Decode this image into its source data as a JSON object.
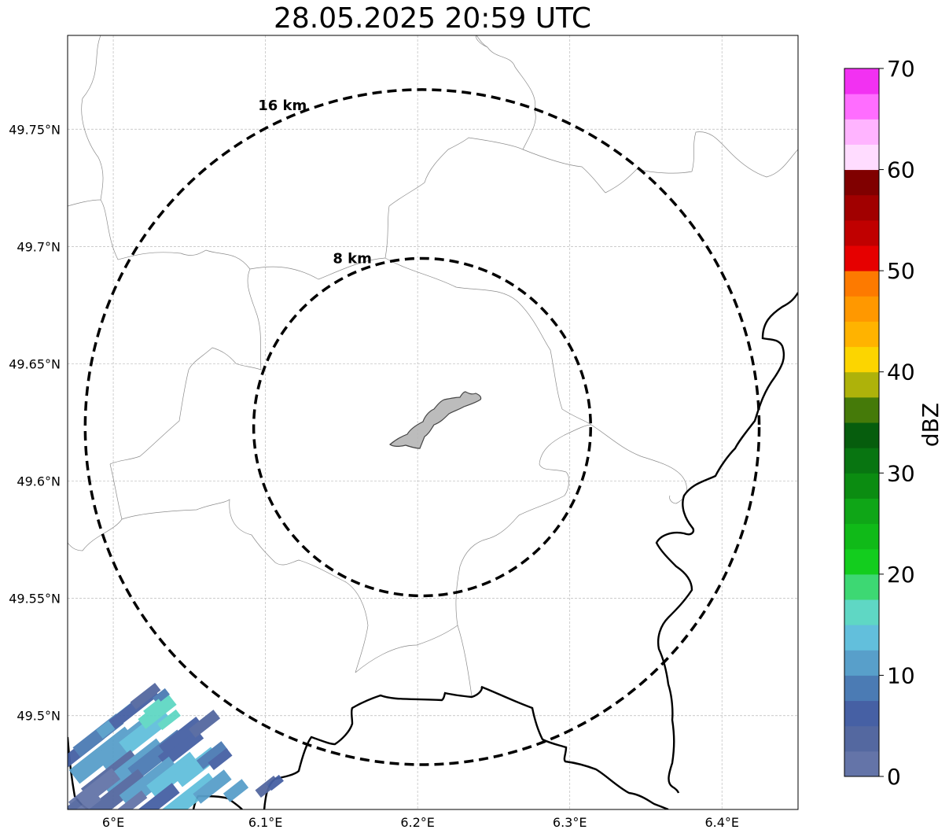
{
  "title": "28.05.2025 20:59 UTC",
  "map": {
    "lon_range": [
      5.97,
      6.45
    ],
    "lat_range": [
      49.46,
      49.79
    ],
    "lon_ticks": [
      {
        "value": 6.0,
        "label": "6°E"
      },
      {
        "value": 6.1,
        "label": "6.1°E"
      },
      {
        "value": 6.2,
        "label": "6.2°E"
      },
      {
        "value": 6.3,
        "label": "6.3°E"
      },
      {
        "value": 6.4,
        "label": "6.4°E"
      }
    ],
    "lat_ticks": [
      {
        "value": 49.75,
        "label": "49.75°N"
      },
      {
        "value": 49.7,
        "label": "49.7°N"
      },
      {
        "value": 49.65,
        "label": "49.65°N"
      },
      {
        "value": 49.6,
        "label": "49.6°N"
      },
      {
        "value": 49.55,
        "label": "49.55°N"
      },
      {
        "value": 49.5,
        "label": "49.5°N"
      }
    ],
    "grid": true,
    "rings": [
      {
        "label": "8 km",
        "radius_km": 8
      },
      {
        "label": "16 km",
        "radius_km": 16
      }
    ],
    "center": {
      "lon": 6.203,
      "lat": 49.623
    }
  },
  "colorbar": {
    "label": "dBZ",
    "min": 0,
    "max": 70,
    "ticks": [
      {
        "value": 0,
        "label": "0"
      },
      {
        "value": 10,
        "label": "10"
      },
      {
        "value": 20,
        "label": "20"
      },
      {
        "value": 30,
        "label": "30"
      },
      {
        "value": 40,
        "label": "40"
      },
      {
        "value": 50,
        "label": "50"
      },
      {
        "value": 60,
        "label": "60"
      },
      {
        "value": 70,
        "label": "70"
      }
    ],
    "colors": [
      "#6474a8",
      "#5468a0",
      "#4660a4",
      "#4b7bb4",
      "#589fca",
      "#62bfdc",
      "#5fd7c4",
      "#3dd873",
      "#13cd1e",
      "#10ba18",
      "#0fa617",
      "#0b8c11",
      "#087511",
      "#065d0d",
      "#457a09",
      "#aeb20a",
      "#fcd500",
      "#ffb300",
      "#ff9800",
      "#fd7a00",
      "#e60000",
      "#c00000",
      "#a10000",
      "#800000",
      "#ffdcff",
      "#ffb4ff",
      "#ff6dff",
      "#f231f2"
    ]
  }
}
